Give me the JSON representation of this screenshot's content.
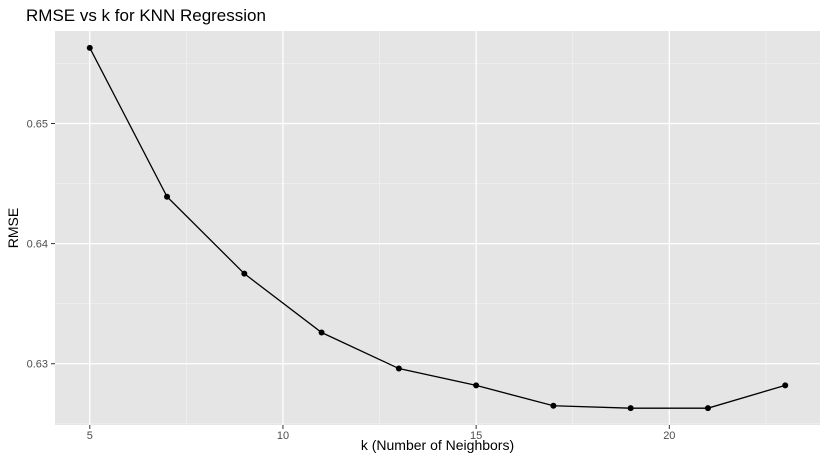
{
  "chart_data": {
    "type": "line",
    "title": "RMSE vs k for KNN Regression",
    "xlabel": "k (Number of Neighbors)",
    "ylabel": "RMSE",
    "xlim": [
      4.1,
      23.9
    ],
    "ylim": [
      0.6249,
      0.6577
    ],
    "x_ticks": [
      5,
      10,
      15,
      20
    ],
    "x_tick_labels": [
      "5",
      "10",
      "15",
      "20"
    ],
    "x_minor_ticks": [
      7.5,
      12.5,
      17.5,
      22.5
    ],
    "y_ticks": [
      0.63,
      0.64,
      0.65
    ],
    "y_tick_labels": [
      "0.63",
      "0.64",
      "0.65"
    ],
    "y_minor_ticks": [
      0.625,
      0.635,
      0.645,
      0.655
    ],
    "grid": true,
    "series": [
      {
        "name": "RMSE",
        "x": [
          5,
          7,
          9,
          11,
          13,
          15,
          17,
          19,
          21,
          23
        ],
        "values": [
          0.6563,
          0.6439,
          0.6375,
          0.6326,
          0.6296,
          0.6282,
          0.6265,
          0.6263,
          0.6263,
          0.6282
        ]
      }
    ],
    "colors": {
      "panel_bg": "#e5e5e5",
      "grid_major": "#ffffff",
      "grid_minor": "#f2f2f2",
      "line": "#000000",
      "point": "#000000",
      "tick": "#333333"
    }
  }
}
